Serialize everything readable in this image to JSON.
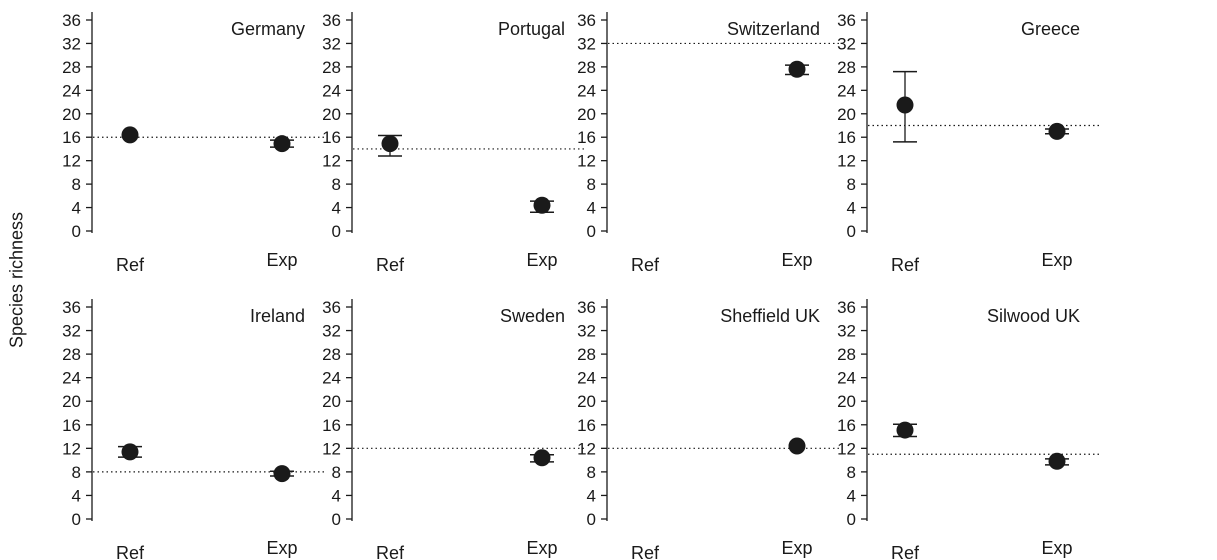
{
  "ylabel": "Species richness",
  "chart_data": {
    "type": "scatter",
    "ylim": [
      0,
      36
    ],
    "yticks": [
      0,
      4,
      8,
      12,
      16,
      20,
      24,
      28,
      32,
      36
    ],
    "categories": [
      "Ref",
      "Exp"
    ],
    "grid": false,
    "panels": [
      {
        "title": "Germany",
        "reference_line": 16,
        "points": [
          {
            "x": "Ref",
            "y": 16.4,
            "low": 16.4,
            "high": 16.4
          },
          {
            "x": "Exp",
            "y": 14.9,
            "low": 14.3,
            "high": 15.5
          }
        ]
      },
      {
        "title": "Portugal",
        "reference_line": 14,
        "points": [
          {
            "x": "Ref",
            "y": 14.9,
            "low": 12.8,
            "high": 16.3
          },
          {
            "x": "Exp",
            "y": 4.4,
            "low": 3.2,
            "high": 5.1
          }
        ]
      },
      {
        "title": "Switzerland",
        "reference_line": 32,
        "points": [
          {
            "x": "Exp",
            "y": 27.6,
            "low": 26.7,
            "high": 28.3
          }
        ]
      },
      {
        "title": "Greece",
        "reference_line": 18,
        "points": [
          {
            "x": "Ref",
            "y": 21.5,
            "low": 15.2,
            "high": 27.2
          },
          {
            "x": "Exp",
            "y": 17.0,
            "low": 16.6,
            "high": 17.4
          }
        ]
      },
      {
        "title": "Ireland",
        "reference_line": 8,
        "points": [
          {
            "x": "Ref",
            "y": 11.4,
            "low": 10.5,
            "high": 12.3
          },
          {
            "x": "Exp",
            "y": 7.7,
            "low": 7.3,
            "high": 8.1
          }
        ]
      },
      {
        "title": "Sweden",
        "reference_line": 12,
        "points": [
          {
            "x": "Exp",
            "y": 10.4,
            "low": 9.7,
            "high": 10.9
          }
        ]
      },
      {
        "title": "Sheffield UK",
        "reference_line": 12,
        "points": [
          {
            "x": "Exp",
            "y": 12.4,
            "low": 12.4,
            "high": 12.4
          }
        ]
      },
      {
        "title": "Silwood UK",
        "reference_line": 11,
        "points": [
          {
            "x": "Ref",
            "y": 15.1,
            "low": 14.0,
            "high": 16.1
          },
          {
            "x": "Exp",
            "y": 9.8,
            "low": 9.2,
            "high": 10.2
          }
        ]
      }
    ]
  }
}
